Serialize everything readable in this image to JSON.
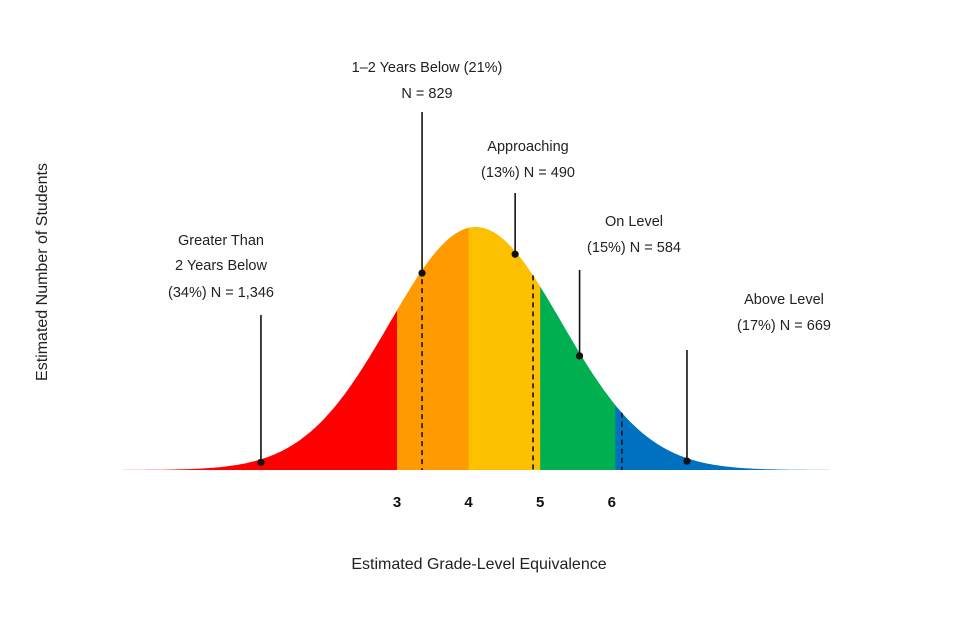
{
  "chart_data": {
    "type": "area",
    "title": "",
    "xlabel": "Estimated Grade-Level Equivalence",
    "ylabel": "Estimated Number of Students",
    "x_ticks": [
      3,
      4,
      5,
      6
    ],
    "x_tick_labels": [
      "3",
      "4",
      "5",
      "6"
    ],
    "distribution": {
      "mean": 4.1,
      "sd": 1.2,
      "xlim": [
        -1.3,
        9.4
      ]
    },
    "bands": [
      {
        "name": "Greater Than 2 Years Below",
        "from": -1.3,
        "to": 3,
        "color": "#ff0000"
      },
      {
        "name": "1–2 Years Below",
        "from": 3,
        "to": 4,
        "color": "#ff9a00"
      },
      {
        "name": "Approaching",
        "from": 4,
        "to": 5,
        "color": "#fcc000"
      },
      {
        "name": "On Level",
        "from": 5,
        "to": 6.05,
        "color": "#00af50"
      },
      {
        "name": "Above Level",
        "from": 6.05,
        "to": 9.4,
        "color": "#0070c0"
      }
    ],
    "cut_lines": [
      3.35,
      4.9,
      6.14
    ],
    "annotations": [
      {
        "line1": "Greater Than",
        "line2": "2 Years Below",
        "line3": "(34%) N = 1,346",
        "percent": 34,
        "n": 1346,
        "x": 1.1
      },
      {
        "line1": "1–2 Years Below (21%)",
        "line2": "N = 829",
        "percent": 21,
        "n": 829,
        "x": 3.35
      },
      {
        "line1": "Approaching",
        "line2": "(13%) N = 490",
        "percent": 13,
        "n": 490,
        "x": 4.65
      },
      {
        "line1": "On Level",
        "line2": "(15%) N = 584",
        "percent": 15,
        "n": 584,
        "x": 5.55
      },
      {
        "line1": "Above Level",
        "line2": "(17%) N = 669",
        "percent": 17,
        "n": 669,
        "x": 7.05
      }
    ]
  }
}
